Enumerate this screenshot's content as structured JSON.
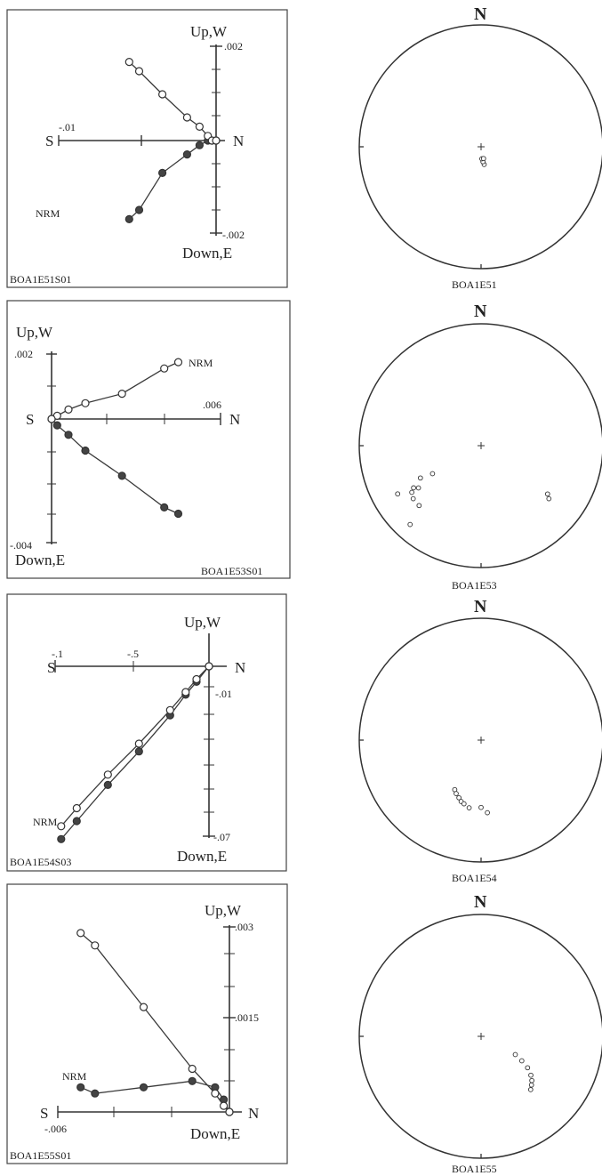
{
  "panels": [
    {
      "zijderveld": {
        "specimen": "BOA1E51S01",
        "top_label": "Up,W",
        "bottom_label": "Down,E",
        "left_label": "S",
        "right_label": "N",
        "horizontal_tick_label": "-.01",
        "vertical_top_value_label": ".002",
        "vertical_bottom_value_label": "-.002",
        "nrm_label": "NRM",
        "horizontal_series": [
          [
            -0.0105,
            0.0017
          ],
          [
            -0.0093,
            0.0015
          ],
          [
            -0.0065,
            0.001
          ],
          [
            -0.0035,
            0.0005
          ],
          [
            -0.002,
            0.0003
          ],
          [
            -0.001,
            0.0001
          ],
          [
            -0.0005,
            0.0
          ],
          [
            0.0,
            0.0
          ]
        ],
        "vertical_series": [
          [
            -0.0105,
            -0.0017
          ],
          [
            -0.0093,
            -0.0015
          ],
          [
            -0.0065,
            -0.0007
          ],
          [
            -0.0035,
            -0.0003
          ],
          [
            -0.002,
            -0.0001
          ],
          [
            -0.001,
            0.0
          ],
          [
            -0.0005,
            0.0
          ],
          [
            0.0,
            0.0
          ]
        ]
      },
      "stereonet": {
        "specimen": "BOA1E51",
        "north_label": "N",
        "points": [
          [
            170,
            78
          ],
          [
            173,
            80
          ],
          [
            176,
            82
          ],
          [
            168,
            82
          ]
        ]
      }
    },
    {
      "zijderveld": {
        "specimen": "BOA1E53S01",
        "top_label": "Up,W",
        "bottom_label": "Down,E",
        "left_label": "S",
        "right_label": "N",
        "horizontal_tick_label": ".006",
        "vertical_top_value_label": ".002",
        "vertical_bottom_value_label": "-.004",
        "nrm_label": "NRM",
        "horizontal_series": [
          [
            0.0045,
            0.0018
          ],
          [
            0.004,
            0.0016
          ],
          [
            0.0025,
            0.0008
          ],
          [
            0.0012,
            0.0005
          ],
          [
            0.0006,
            0.0003
          ],
          [
            0.0002,
            0.0001
          ],
          [
            0.0,
            0.0
          ]
        ],
        "vertical_series": [
          [
            0.0045,
            -0.003
          ],
          [
            0.004,
            -0.0028
          ],
          [
            0.0025,
            -0.0018
          ],
          [
            0.0012,
            -0.001
          ],
          [
            0.0006,
            -0.0005
          ],
          [
            0.0002,
            -0.0002
          ],
          [
            0.0,
            0.0
          ]
        ]
      },
      "stereonet": {
        "specimen": "BOA1E53",
        "north_label": "N",
        "points": [
          [
            240,
            52
          ],
          [
            242,
            43
          ],
          [
            236,
            38
          ],
          [
            238,
            35
          ],
          [
            236,
            32
          ],
          [
            232,
            30
          ],
          [
            226,
            30
          ],
          [
            240,
            22
          ],
          [
            222,
            14
          ],
          [
            128,
            30
          ],
          [
            126,
            33
          ]
        ]
      }
    },
    {
      "zijderveld": {
        "specimen": "BOA1E54S03",
        "top_label": "Up,W",
        "bottom_label": "Down,E",
        "left_label": "S",
        "right_label": "N",
        "horizontal_tick_label": "-.1",
        "horizontal_tick_label_2": "-.5",
        "vertical_top_value_label": "-.01",
        "vertical_bottom_value_label": "-.07",
        "nrm_label": "NRM",
        "horizontal_series": [
          [
            -0.095,
            -0.062
          ],
          [
            -0.085,
            -0.055
          ],
          [
            -0.065,
            -0.042
          ],
          [
            -0.045,
            -0.03
          ],
          [
            -0.025,
            -0.017
          ],
          [
            -0.015,
            -0.01
          ],
          [
            -0.008,
            -0.005
          ],
          [
            0.0,
            0.0
          ]
        ],
        "vertical_series": [
          [
            -0.095,
            -0.067
          ],
          [
            -0.085,
            -0.06
          ],
          [
            -0.065,
            -0.046
          ],
          [
            -0.045,
            -0.033
          ],
          [
            -0.025,
            -0.019
          ],
          [
            -0.015,
            -0.011
          ],
          [
            -0.008,
            -0.006
          ],
          [
            0.0,
            0.0
          ]
        ]
      },
      "stereonet": {
        "specimen": "BOA1E54",
        "north_label": "N",
        "points": [
          [
            208,
            52
          ],
          [
            205,
            50
          ],
          [
            201,
            48
          ],
          [
            198,
            46
          ],
          [
            195,
            45
          ],
          [
            190,
            43
          ],
          [
            180,
            44
          ],
          [
            175,
            40
          ]
        ]
      }
    },
    {
      "zijderveld": {
        "specimen": "BOA1E55S01",
        "top_label": "Up,W",
        "bottom_label": "Down,E",
        "left_label": "S",
        "right_label": "N",
        "horizontal_tick_label": "-.006",
        "vertical_top_value_label": ".003",
        "vertical_mid_value_label": ".0015",
        "nrm_label": "NRM",
        "horizontal_series": [
          [
            -0.0052,
            0.0029
          ],
          [
            -0.0047,
            0.0027
          ],
          [
            -0.003,
            0.0017
          ],
          [
            -0.0013,
            0.0007
          ],
          [
            -0.0005,
            0.0003
          ],
          [
            -0.0002,
            0.0001
          ],
          [
            0.0,
            0.0
          ]
        ],
        "vertical_series": [
          [
            -0.0052,
            0.0004
          ],
          [
            -0.0047,
            0.0003
          ],
          [
            -0.003,
            0.0004
          ],
          [
            -0.0013,
            0.0005
          ],
          [
            -0.0005,
            0.0004
          ],
          [
            -0.0002,
            0.0002
          ],
          [
            0.0,
            0.0
          ]
        ]
      },
      "stereonet": {
        "specimen": "BOA1E55",
        "north_label": "N",
        "points": [
          [
            137,
            40
          ],
          [
            134,
            42
          ],
          [
            131,
            44
          ],
          [
            128,
            47
          ],
          [
            124,
            52
          ],
          [
            121,
            58
          ],
          [
            118,
            64
          ]
        ]
      }
    }
  ]
}
